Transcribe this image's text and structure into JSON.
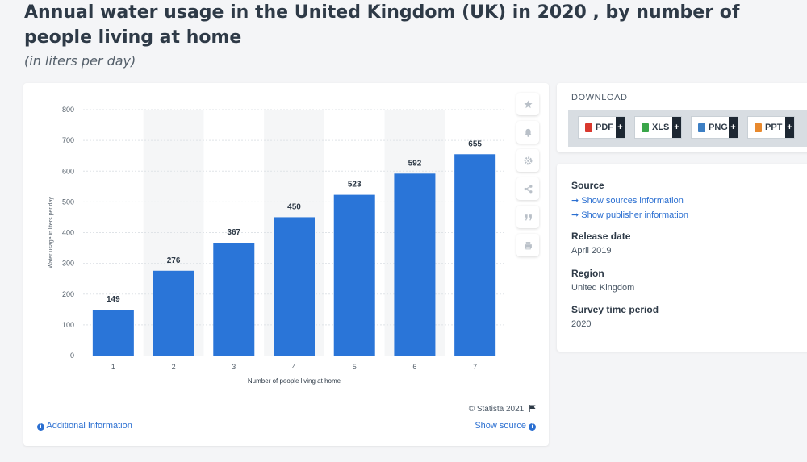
{
  "page": {
    "title": "Annual water usage in the United Kingdom (UK) in 2020 , by number of people living at home",
    "subtitle": "(in liters per day)"
  },
  "chart_data": {
    "type": "bar",
    "categories": [
      "1",
      "2",
      "3",
      "4",
      "5",
      "6",
      "7"
    ],
    "values": [
      149,
      276,
      367,
      450,
      523,
      592,
      655
    ],
    "title": "",
    "xlabel": "Number of people living at home",
    "ylabel": "Water usage in liters per day",
    "ylim": [
      0,
      800
    ],
    "yticks": [
      "0",
      "100",
      "200",
      "300",
      "400",
      "500",
      "600",
      "700",
      "800"
    ],
    "bar_color": "#2a75d8",
    "data_labels": true,
    "grid": "horizontal-dashed",
    "alternating_column_bands": true
  },
  "chart_footer": {
    "copyright": "© Statista 2021",
    "additional_info": "Additional Information",
    "show_source": "Show source"
  },
  "toolbar": {
    "icons": [
      "star-icon",
      "bell-icon",
      "gear-icon",
      "share-icon",
      "quote-icon",
      "print-icon"
    ]
  },
  "download": {
    "heading": "DOWNLOAD",
    "buttons": [
      {
        "label": "PDF",
        "icon_color": "#d9382e"
      },
      {
        "label": "XLS",
        "icon_color": "#3aa64a"
      },
      {
        "label": "PNG",
        "icon_color": "#3d7fc4"
      },
      {
        "label": "PPT",
        "icon_color": "#e8892d"
      }
    ],
    "plus": "+"
  },
  "meta": {
    "source_heading": "Source",
    "show_sources": "Show sources information",
    "show_publisher": "Show publisher information",
    "release_heading": "Release date",
    "release_value": "April 2019",
    "region_heading": "Region",
    "region_value": "United Kingdom",
    "survey_heading": "Survey time period",
    "survey_value": "2020",
    "arrow": "➞"
  }
}
